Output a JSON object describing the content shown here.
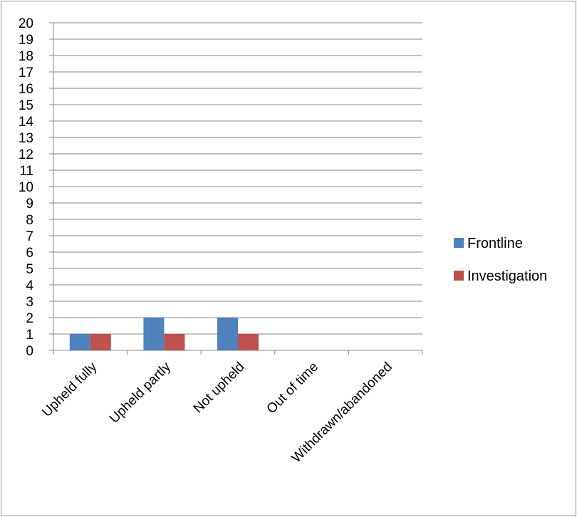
{
  "chart_data": {
    "type": "bar",
    "categories": [
      "Upheld fully",
      "Upheld partly",
      "Not upheld",
      "Out of time",
      "Withdrawn/abandoned"
    ],
    "series": [
      {
        "name": "Frontline",
        "values": [
          1,
          2,
          2,
          0,
          0
        ],
        "color": "#4f81bd"
      },
      {
        "name": "Investigation",
        "values": [
          1,
          1,
          1,
          0,
          0
        ],
        "color": "#c0504d"
      }
    ],
    "ylim": [
      0,
      20
    ],
    "y_ticks": [
      "0",
      "1",
      "2",
      "3",
      "4",
      "5",
      "6",
      "7",
      "8",
      "9",
      "10",
      "11",
      "12",
      "13",
      "14",
      "15",
      "16",
      "17",
      "18",
      "19",
      "20"
    ],
    "grid": true,
    "legend_position": "right"
  }
}
